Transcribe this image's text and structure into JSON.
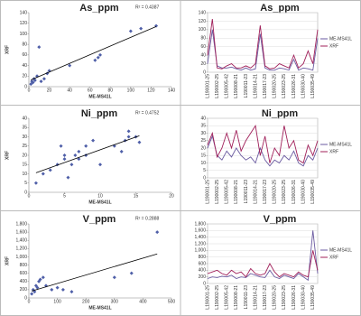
{
  "chart_data": [
    {
      "type": "scatter",
      "title": "As_ppm",
      "annotation": "R² = 0.4387",
      "x_label": "ME-MS41L",
      "y_label": "XRF",
      "color": "#4f5fa8",
      "trendline": true,
      "x": [
        2,
        3,
        4,
        5,
        6,
        8,
        10,
        12,
        15,
        18,
        20,
        40,
        65,
        68,
        70,
        100,
        110,
        125
      ],
      "y": [
        5,
        10,
        8,
        15,
        12,
        20,
        75,
        10,
        15,
        25,
        30,
        40,
        50,
        55,
        60,
        105,
        110,
        115
      ],
      "xlim": [
        0,
        140
      ],
      "xticks": [
        0,
        20,
        40,
        60,
        80,
        100,
        120,
        140
      ],
      "ylim": [
        0,
        140
      ],
      "yticks": [
        0,
        20,
        40,
        60,
        80,
        100,
        120,
        140
      ]
    },
    {
      "type": "line",
      "title": "As_ppm",
      "legend": "right",
      "categories": [
        "L190001-25",
        null,
        "L190002-25",
        null,
        "L190005-42",
        null,
        "L190008-21",
        null,
        "L190011-23",
        null,
        "L190014-21",
        null,
        "L190017-23",
        null,
        "L190020-25",
        null,
        "L190023-25",
        null,
        "L190026-31",
        null,
        "L190030-40",
        null,
        "L190035-49",
        null
      ],
      "series": [
        {
          "name": "ME-MS41L",
          "color": "#6a5aa0",
          "values": [
            20,
            100,
            15,
            10,
            10,
            12,
            8,
            5,
            10,
            5,
            8,
            90,
            10,
            5,
            5,
            10,
            8,
            5,
            30,
            5,
            10,
            8,
            5,
            80
          ]
        },
        {
          "name": "XRF",
          "color": "#a0205a",
          "values": [
            40,
            125,
            10,
            8,
            15,
            20,
            10,
            10,
            15,
            10,
            20,
            110,
            15,
            8,
            10,
            20,
            15,
            10,
            40,
            10,
            20,
            50,
            20,
            100
          ]
        }
      ],
      "ylim": [
        0,
        140
      ],
      "yticks": [
        0,
        20,
        40,
        60,
        80,
        100,
        120,
        140
      ]
    },
    {
      "type": "scatter",
      "title": "Ni_ppm",
      "annotation": "R² = 0.4752",
      "x_label": "ME-MS41L",
      "y_label": "XRF",
      "color": "#4f5fa8",
      "trendline": true,
      "x": [
        1,
        2,
        3,
        4,
        4.5,
        5,
        5,
        5.5,
        6,
        6.5,
        7,
        7,
        8,
        8,
        9,
        10,
        12,
        13,
        13.5,
        14,
        14,
        15,
        15.5
      ],
      "y": [
        5,
        10,
        12,
        15,
        25,
        18,
        20,
        8,
        15,
        20,
        18,
        22,
        20,
        25,
        28,
        15,
        25,
        22,
        28,
        30,
        33,
        30,
        27
      ],
      "xlim": [
        0,
        20
      ],
      "xticks": [
        0,
        5,
        10,
        15,
        20
      ],
      "ylim": [
        0,
        40
      ],
      "yticks": [
        0,
        5,
        10,
        15,
        20,
        25,
        30,
        35,
        40
      ]
    },
    {
      "type": "line",
      "title": "Ni_ppm",
      "legend": "right",
      "categories": [
        "L190001-25",
        null,
        "L190002-25",
        null,
        "L190005-42",
        null,
        "L190008-21",
        null,
        "L190011-23",
        null,
        "L190014-21",
        null,
        "L190017-23",
        null,
        "L190020-25",
        null,
        "L190023-25",
        null,
        "L190026-31",
        null,
        "L190030-40",
        null,
        "L190035-49",
        null
      ],
      "series": [
        {
          "name": "ME-MS41L",
          "color": "#6a5aa0",
          "values": [
            20,
            28,
            15,
            12,
            18,
            14,
            20,
            15,
            12,
            14,
            10,
            20,
            12,
            8,
            12,
            10,
            15,
            12,
            18,
            10,
            8,
            15,
            12,
            20
          ]
        },
        {
          "name": "XRF",
          "color": "#a0205a",
          "values": [
            22,
            30,
            14,
            20,
            30,
            20,
            32,
            18,
            25,
            30,
            35,
            15,
            28,
            10,
            20,
            15,
            35,
            20,
            25,
            12,
            10,
            22,
            15,
            25
          ]
        }
      ],
      "ylim": [
        0,
        40
      ],
      "yticks": [
        0,
        5,
        10,
        15,
        20,
        25,
        30,
        35,
        40
      ]
    },
    {
      "type": "scatter",
      "title": "V_ppm",
      "annotation": "R² = 0.2888",
      "x_label": "ME-MS41L",
      "y_label": "XRF",
      "color": "#4f5fa8",
      "trendline": true,
      "x": [
        10,
        15,
        20,
        25,
        30,
        35,
        40,
        50,
        60,
        80,
        100,
        120,
        150,
        300,
        360,
        450
      ],
      "y": [
        100,
        200,
        150,
        300,
        250,
        400,
        450,
        500,
        300,
        200,
        250,
        200,
        150,
        500,
        600,
        1600
      ],
      "xlim": [
        0,
        500
      ],
      "xticks": [
        0,
        100,
        200,
        300,
        400,
        500
      ],
      "ylim": [
        0,
        1800
      ],
      "yticks": [
        0,
        200,
        400,
        600,
        800,
        {
          "value": 1000,
          "label": "1,000"
        },
        {
          "value": 1200,
          "label": "1,200"
        },
        {
          "value": 1400,
          "label": "1,400"
        },
        {
          "value": 1600,
          "label": "1,600"
        },
        {
          "value": 1800,
          "label": "1,800"
        }
      ]
    },
    {
      "type": "line",
      "title": "V_ppm",
      "legend": "right",
      "categories": [
        "L190001-25",
        null,
        "L190002-25",
        null,
        "L190005-42",
        null,
        "L190008-21",
        null,
        "L190011-23",
        null,
        "L190014-21",
        null,
        "L190017-23",
        null,
        "L190020-25",
        null,
        "L190023-25",
        null,
        "L190026-31",
        null,
        "L190030-40",
        null,
        "L190035-49",
        null
      ],
      "series": [
        {
          "name": "ME-MS41L",
          "color": "#6a5aa0",
          "values": [
            150,
            200,
            180,
            220,
            200,
            250,
            150,
            200,
            180,
            300,
            250,
            200,
            180,
            400,
            200,
            150,
            250,
            200,
            150,
            300,
            200,
            100,
            1600,
            300
          ]
        },
        {
          "name": "XRF",
          "color": "#a0205a",
          "values": [
            300,
            350,
            400,
            300,
            250,
            400,
            300,
            350,
            200,
            450,
            300,
            250,
            300,
            600,
            350,
            200,
            300,
            250,
            200,
            350,
            250,
            200,
            1000,
            400
          ]
        }
      ],
      "ylim": [
        0,
        1800
      ],
      "yticks": [
        0,
        200,
        400,
        600,
        800,
        {
          "value": 1000,
          "label": "1,000"
        },
        {
          "value": 1200,
          "label": "1,200"
        },
        {
          "value": 1400,
          "label": "1,400"
        },
        {
          "value": 1600,
          "label": "1,600"
        },
        {
          "value": 1800,
          "label": "1,800"
        }
      ]
    }
  ]
}
